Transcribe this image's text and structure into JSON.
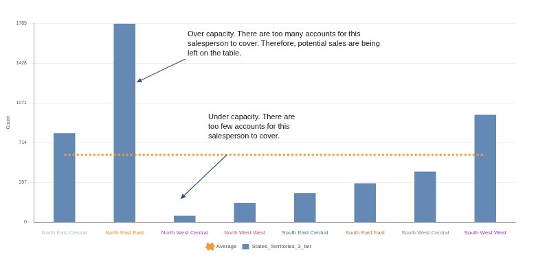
{
  "chart_data": {
    "type": "bar",
    "y_label": "Count",
    "categories": [
      "North East Central",
      "North East East",
      "North West Central",
      "North West West",
      "South East Central",
      "South East East",
      "South West Central",
      "South West West"
    ],
    "series": [
      {
        "name": "States_Territories_3_tier",
        "type": "bar",
        "color": "#6589b5",
        "values": [
          800,
          1780,
          60,
          175,
          260,
          350,
          455,
          965
        ]
      },
      {
        "name": "Average",
        "type": "line",
        "line_style": "dotted",
        "color": "#f39c34",
        "values": [
          605,
          605,
          605,
          605,
          605,
          605,
          605,
          605
        ]
      }
    ],
    "ylim": [
      0,
      1785
    ],
    "yticks": [
      0,
      357,
      714,
      1071,
      1428,
      1785
    ],
    "grid": true,
    "legend": "bottom",
    "annotations": [
      {
        "text": "Over capacity. There are too many accounts for this salesperson to cover. Therefore, potential sales are being left on the table."
      },
      {
        "text": "Under capacity. There are too few accounts for this salesperson to cover."
      }
    ]
  }
}
